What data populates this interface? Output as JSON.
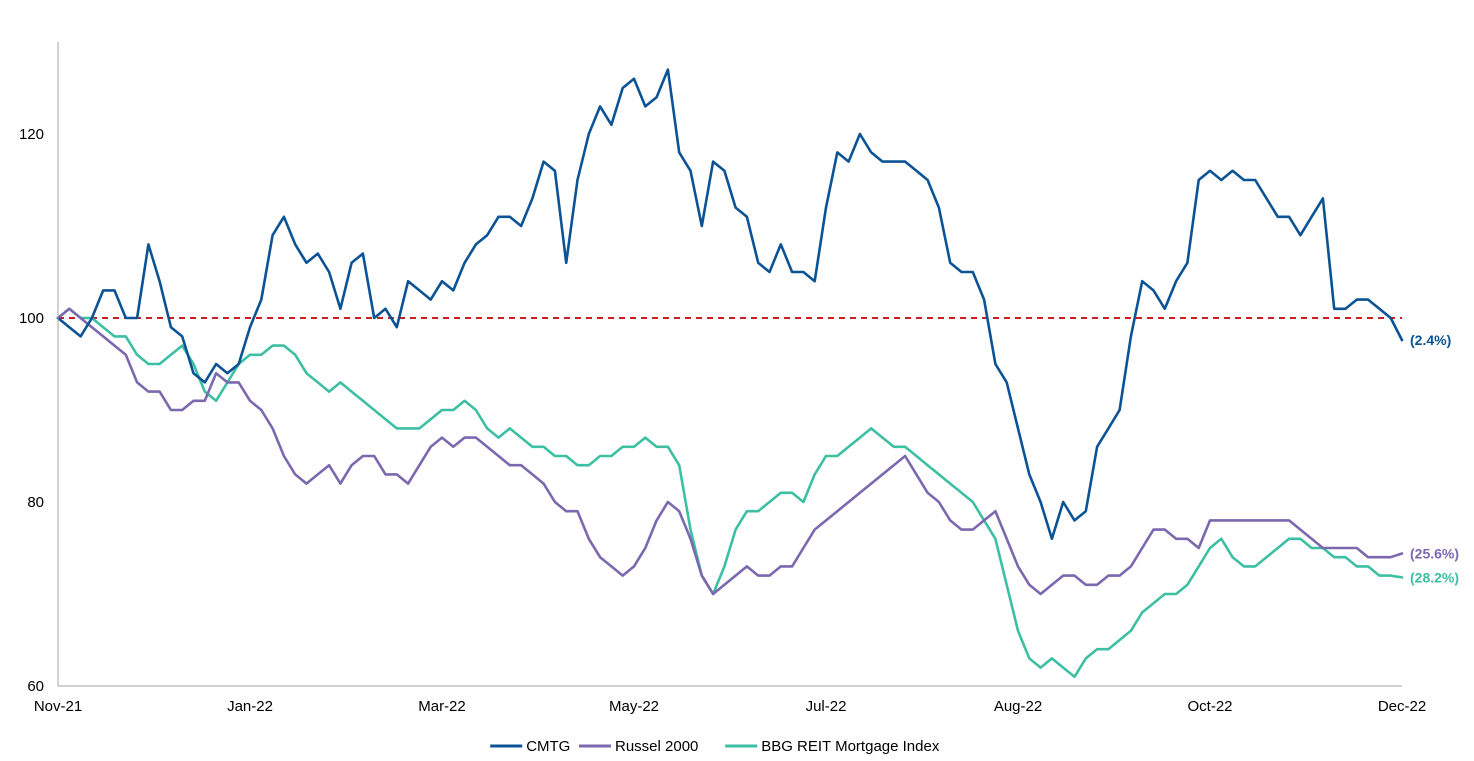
{
  "chart_data": {
    "type": "line",
    "x_tick_labels": [
      "Nov-21",
      "Jan-22",
      "Mar-22",
      "May-22",
      "Jul-22",
      "Aug-22",
      "Oct-22",
      "Dec-22"
    ],
    "ylim": [
      60,
      130
    ],
    "y_ticks": [
      60,
      80,
      100,
      120
    ],
    "reference_line": {
      "value": 100,
      "color": "#c00000",
      "style": "dashed"
    },
    "grid": false,
    "legend": {
      "placement": "bottom"
    },
    "series": [
      {
        "name": "CMTG",
        "color": "#0b5394",
        "end_label": "(2.4%)",
        "values": [
          100,
          99,
          98,
          100,
          103,
          103,
          100,
          100,
          108,
          104,
          99,
          98,
          94,
          93,
          95,
          94,
          95,
          99,
          102,
          109,
          111,
          108,
          106,
          107,
          105,
          101,
          106,
          107,
          100,
          101,
          99,
          104,
          103,
          102,
          104,
          103,
          106,
          108,
          109,
          111,
          111,
          110,
          113,
          117,
          116,
          106,
          115,
          120,
          123,
          121,
          125,
          126,
          123,
          124,
          127,
          118,
          116,
          110,
          117,
          116,
          112,
          111,
          106,
          105,
          108,
          105,
          105,
          104,
          112,
          118,
          117,
          120,
          118,
          117,
          117,
          117,
          116,
          115,
          112,
          106,
          105,
          105,
          102,
          95,
          93,
          88,
          83,
          80,
          76,
          80,
          78,
          79,
          86,
          88,
          90,
          98,
          104,
          103,
          101,
          104,
          106,
          115,
          116,
          115,
          116,
          115,
          115,
          113,
          111,
          111,
          109,
          111,
          113,
          101,
          101,
          102,
          102,
          101,
          100,
          97.6
        ]
      },
      {
        "name": "Russel 2000",
        "color": "#7b68ae",
        "end_label": "(25.6%)",
        "values": [
          100,
          101,
          100,
          99,
          98,
          97,
          96,
          93,
          92,
          92,
          90,
          90,
          91,
          91,
          94,
          93,
          93,
          91,
          90,
          88,
          85,
          83,
          82,
          83,
          84,
          82,
          84,
          85,
          85,
          83,
          83,
          82,
          84,
          86,
          87,
          86,
          87,
          87,
          86,
          85,
          84,
          84,
          83,
          82,
          80,
          79,
          79,
          76,
          74,
          73,
          72,
          73,
          75,
          78,
          80,
          79,
          76,
          72,
          70,
          71,
          72,
          73,
          72,
          72,
          73,
          73,
          75,
          77,
          78,
          79,
          80,
          81,
          82,
          83,
          84,
          85,
          83,
          81,
          80,
          78,
          77,
          77,
          78,
          79,
          76,
          73,
          71,
          70,
          71,
          72,
          72,
          71,
          71,
          72,
          72,
          73,
          75,
          77,
          77,
          76,
          76,
          75,
          78,
          78,
          78,
          78,
          78,
          78,
          78,
          78,
          77,
          76,
          75,
          75,
          75,
          75,
          74,
          74,
          74,
          74.4
        ]
      },
      {
        "name": "BBG REIT Mortgage Index",
        "color": "#3cbfa3",
        "end_label": "(28.2%)",
        "values": [
          100,
          101,
          100,
          100,
          99,
          98,
          98,
          96,
          95,
          95,
          96,
          97,
          95,
          92,
          91,
          93,
          95,
          96,
          96,
          97,
          97,
          96,
          94,
          93,
          92,
          93,
          92,
          91,
          90,
          89,
          88,
          88,
          88,
          89,
          90,
          90,
          91,
          90,
          88,
          87,
          88,
          87,
          86,
          86,
          85,
          85,
          84,
          84,
          85,
          85,
          86,
          86,
          87,
          86,
          86,
          84,
          77,
          72,
          70,
          73,
          77,
          79,
          79,
          80,
          81,
          81,
          80,
          83,
          85,
          85,
          86,
          87,
          88,
          87,
          86,
          86,
          85,
          84,
          83,
          82,
          81,
          80,
          78,
          76,
          71,
          66,
          63,
          62,
          63,
          62,
          61,
          63,
          64,
          64,
          65,
          66,
          68,
          69,
          70,
          70,
          71,
          73,
          75,
          76,
          74,
          73,
          73,
          74,
          75,
          76,
          76,
          75,
          75,
          74,
          74,
          73,
          73,
          72,
          72,
          71.8
        ]
      }
    ]
  }
}
